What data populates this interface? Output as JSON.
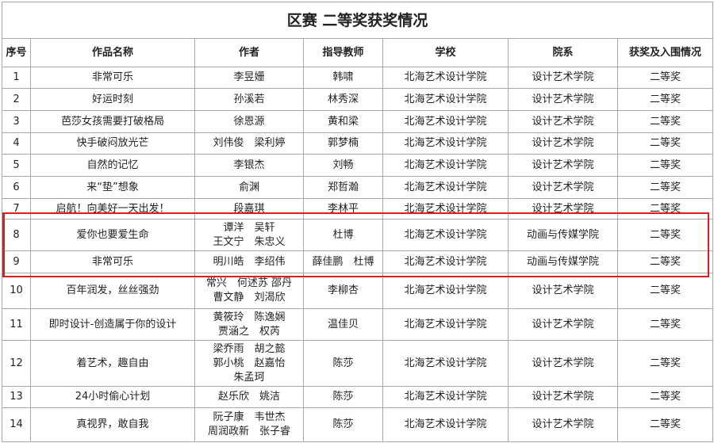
{
  "title": "区赛 二等奖获奖情况",
  "headers": [
    "序号",
    "作品名称",
    "作者",
    "指导教师",
    "学校",
    "院系",
    "获奖及入围情况"
  ],
  "highlight_color": "#e01b1b",
  "rows": [
    [
      "1",
      "非常可乐",
      "李昱姗",
      "韩啸",
      "北海艺术设计学院",
      "设计艺术学院",
      "二等奖"
    ],
    [
      "2",
      "好运时刻",
      "孙溪若",
      "林秀深",
      "北海艺术设计学院",
      "设计艺术学院",
      "二等奖"
    ],
    [
      "3",
      "芭莎女孩需要打破格局",
      "徐恩源",
      "黄和梁",
      "北海艺术设计学院",
      "设计艺术学院",
      "二等奖"
    ],
    [
      "4",
      "快手破闷放光芒",
      "刘伟俊　梁利婷",
      "郭梦楠",
      "北海艺术设计学院",
      "设计艺术学院",
      "二等奖"
    ],
    [
      "5",
      "自然的记忆",
      "李银杰",
      "刘畅",
      "北海艺术设计学院",
      "设计艺术学院",
      "二等奖"
    ],
    [
      "6",
      "来“垫”想象",
      "俞渊",
      "郑哲瀚",
      "北海艺术设计学院",
      "设计艺术学院",
      "二等奖"
    ],
    [
      "7",
      "启航！向美好一天出发！",
      "段嘉琪",
      "李林平",
      "北海艺术设计学院",
      "设计艺术学院",
      "二等奖"
    ],
    [
      "8",
      "爱你也要爱生命",
      "谭洋　吴轩\n王文宁　朱忠义",
      "杜博",
      "北海艺术设计学院",
      "动画与传媒学院",
      "二等奖"
    ],
    [
      "9",
      "非常可乐",
      "明川皓　李绍伟",
      "薛佳鹏　杜博",
      "北海艺术设计学院",
      "动画与传媒学院",
      "二等奖"
    ],
    [
      "10",
      "百年润发，丝丝强劲",
      "常兴　何述苏 邵丹\n曹文静　刘渴欣",
      "李柳杏",
      "北海艺术设计学院",
      "设计艺术学院",
      "二等奖"
    ],
    [
      "11",
      "即时设计-创造属于你的设计",
      "黄筱玲　陈逸娴\n贾涵之　权芮",
      "温佳贝",
      "北海艺术设计学院",
      "设计艺术学院",
      "二等奖"
    ],
    [
      "12",
      "着艺术，趣自由",
      "梁乔雨　胡之懿\n郭小桃　赵嘉怡\n朱孟珂",
      "陈莎",
      "北海艺术设计学院",
      "设计艺术学院",
      "二等奖"
    ],
    [
      "13",
      "24小时偷心计划",
      "赵乐欣　姚洁",
      "陈莎",
      "北海艺术设计学院",
      "设计艺术学院",
      "二等奖"
    ],
    [
      "14",
      "真视界，敢自我",
      "阮子康　韦世杰\n周润政新　张子睿",
      "陈莎",
      "北海艺术设计学院",
      "设计艺术学院",
      "二等奖"
    ]
  ]
}
